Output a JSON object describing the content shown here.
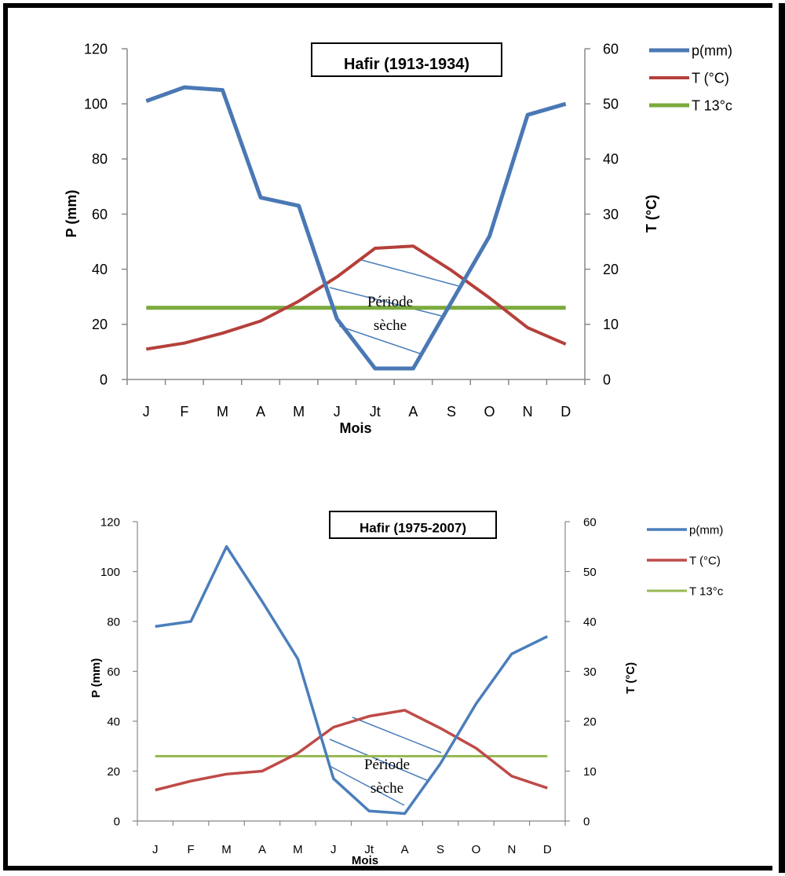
{
  "chart_data": [
    {
      "type": "line",
      "title": "Hafir (1913-1934)",
      "xlabel": "Mois",
      "ylabel": "P (mm)",
      "y2label": "T (°C)",
      "categories": [
        "J",
        "F",
        "M",
        "A",
        "M",
        "J",
        "Jt",
        "A",
        "S",
        "O",
        "N",
        "D"
      ],
      "ylim": [
        0,
        120
      ],
      "y2lim": [
        0,
        60
      ],
      "yticks": [
        "0",
        "20",
        "40",
        "60",
        "80",
        "100",
        "120"
      ],
      "y2ticks": [
        "0",
        "10",
        "20",
        "30",
        "40",
        "50",
        "60"
      ],
      "legend_position": "right",
      "series": [
        {
          "name": "p(mm)",
          "axis": "left",
          "color": "#4a78b4",
          "values": [
            101,
            106,
            105,
            66,
            63,
            22,
            4,
            4,
            28,
            52,
            96,
            100
          ]
        },
        {
          "name": "T (°C)",
          "axis": "right",
          "color": "#b5403b",
          "values": [
            5.5,
            6.6,
            8.4,
            10.6,
            14.2,
            18.6,
            23.8,
            24.2,
            19.8,
            14.8,
            9.4,
            6.4
          ]
        },
        {
          "name": "T 13°c",
          "axis": "right",
          "color": "#7aaa3c",
          "values": [
            13,
            13,
            13,
            13,
            13,
            13,
            13,
            13,
            13,
            13,
            13,
            13
          ]
        }
      ],
      "annotation": {
        "line1": "Période",
        "line2": "sèche"
      }
    },
    {
      "type": "line",
      "title": "Hafir (1975-2007)",
      "xlabel": "Mois",
      "ylabel": "P (mm)",
      "y2label": "T (°C)",
      "categories": [
        "J",
        "F",
        "M",
        "A",
        "M",
        "J",
        "Jt",
        "A",
        "S",
        "O",
        "N",
        "D"
      ],
      "ylim": [
        0,
        120
      ],
      "y2lim": [
        0,
        60
      ],
      "yticks": [
        "0",
        "20",
        "40",
        "60",
        "80",
        "100",
        "120"
      ],
      "y2ticks": [
        "0",
        "10",
        "20",
        "30",
        "40",
        "50",
        "60"
      ],
      "legend_position": "right",
      "series": [
        {
          "name": "p(mm)",
          "axis": "left",
          "color": "#4a7ebb",
          "values": [
            78,
            80,
            110,
            88,
            65,
            17,
            4,
            3,
            23,
            47,
            67,
            74
          ]
        },
        {
          "name": "T (°C)",
          "axis": "right",
          "color": "#be4b48",
          "values": [
            6.2,
            8,
            9.4,
            10,
            13.6,
            18.8,
            21,
            22.2,
            18.6,
            14.6,
            9,
            6.6
          ]
        },
        {
          "name": "T 13°c",
          "axis": "right",
          "color": "#98b954",
          "values": [
            13,
            13,
            13,
            13,
            13,
            13,
            13,
            13,
            13,
            13,
            13,
            13
          ]
        }
      ],
      "annotation": {
        "line1": "Période",
        "line2": "sèche"
      }
    }
  ]
}
